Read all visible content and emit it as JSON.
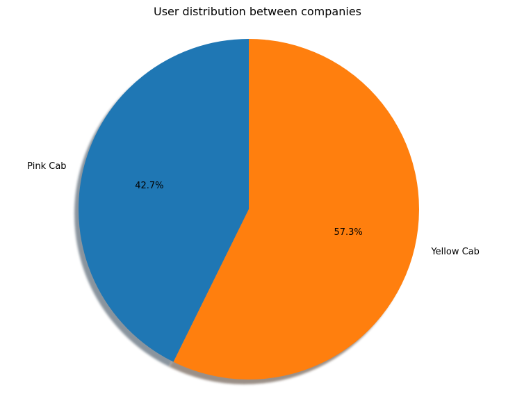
{
  "chart_data": {
    "type": "pie",
    "title": "User distribution between companies",
    "categories": [
      "Pink Cab",
      "Yellow Cab"
    ],
    "values": [
      42.7,
      57.3
    ],
    "value_labels": [
      "42.7%",
      "57.3%"
    ],
    "colors": [
      "#1f77b4",
      "#ff7f0e"
    ],
    "start_angle_deg": 90,
    "direction": "counterclockwise",
    "shadow": true,
    "legend": "none"
  }
}
